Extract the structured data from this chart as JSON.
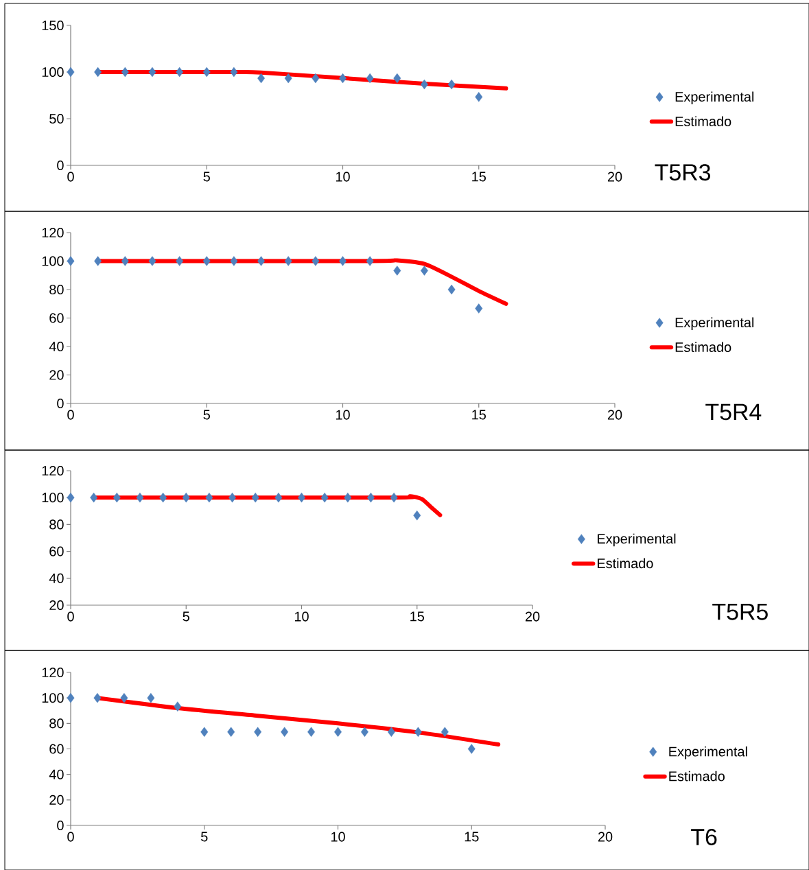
{
  "chart_data": [
    {
      "type": "scatter",
      "annotations": [
        "T5R3"
      ],
      "xlim": [
        0,
        20
      ],
      "xticks": [
        0,
        5,
        10,
        15,
        20
      ],
      "ylim": [
        0,
        150
      ],
      "yticks": [
        0,
        50,
        100,
        150
      ],
      "legend": "right",
      "series": [
        {
          "name": "Experimental",
          "type": "scatter",
          "marker": "diamond",
          "color": "#4f81bd",
          "x": [
            0,
            1,
            2,
            3,
            4,
            5,
            6,
            7,
            8,
            9,
            10,
            11,
            12,
            13,
            14,
            15
          ],
          "values": [
            100,
            100,
            100,
            100,
            100,
            100,
            100,
            93.3,
            93.3,
            93.3,
            93.3,
            93.3,
            93.3,
            86.7,
            86.7,
            73.3
          ]
        },
        {
          "name": "Estimado",
          "type": "line",
          "color": "#ff0000",
          "x": [
            1,
            6,
            7,
            10,
            13,
            16
          ],
          "values": [
            100,
            100,
            99.5,
            93.5,
            87.5,
            82.5
          ]
        }
      ]
    },
    {
      "type": "scatter",
      "annotations": [
        "T5R4"
      ],
      "xlim": [
        0,
        20
      ],
      "xticks": [
        0,
        5,
        10,
        15,
        20
      ],
      "ylim": [
        0,
        120
      ],
      "yticks": [
        0,
        20,
        40,
        60,
        80,
        100,
        120
      ],
      "legend": "right",
      "series": [
        {
          "name": "Experimental",
          "type": "scatter",
          "marker": "diamond",
          "color": "#4f81bd",
          "x": [
            0,
            1,
            2,
            3,
            4,
            5,
            6,
            7,
            8,
            9,
            10,
            11,
            12,
            13,
            14,
            15
          ],
          "values": [
            100,
            100,
            100,
            100,
            100,
            100,
            100,
            100,
            100,
            100,
            100,
            100,
            93.3,
            93.3,
            80,
            66.7
          ]
        },
        {
          "name": "Estimado",
          "type": "line",
          "color": "#ff0000",
          "x": [
            1,
            11,
            12,
            13,
            14,
            15,
            16
          ],
          "values": [
            100,
            100,
            100.5,
            98,
            89,
            79,
            70
          ]
        }
      ]
    },
    {
      "type": "scatter",
      "annotations": [
        "T5R5"
      ],
      "xlim": [
        0,
        20
      ],
      "xticks": [
        0,
        5,
        10,
        15,
        20
      ],
      "ylim": [
        20,
        120
      ],
      "yticks": [
        20,
        40,
        60,
        80,
        100,
        120
      ],
      "legend": "right",
      "series": [
        {
          "name": "Experimental",
          "type": "scatter",
          "marker": "diamond",
          "color": "#4f81bd",
          "x": [
            0,
            1,
            2,
            3,
            4,
            5,
            6,
            7,
            8,
            9,
            10,
            11,
            12,
            13,
            14,
            15
          ],
          "values": [
            100,
            100,
            100,
            100,
            100,
            100,
            100,
            100,
            100,
            100,
            100,
            100,
            100,
            100,
            100,
            86.7
          ]
        },
        {
          "name": "Estimado",
          "type": "line",
          "color": "#ff0000",
          "x": [
            1,
            14,
            14.7,
            15.2,
            15.6,
            16
          ],
          "values": [
            100,
            100,
            101,
            99,
            93,
            87
          ]
        }
      ]
    },
    {
      "type": "scatter",
      "annotations": [
        "T6"
      ],
      "xlim": [
        0,
        20
      ],
      "xticks": [
        0,
        5,
        10,
        15,
        20
      ],
      "ylim": [
        0,
        120
      ],
      "yticks": [
        0,
        20,
        40,
        60,
        80,
        100,
        120
      ],
      "legend": "right",
      "series": [
        {
          "name": "Experimental",
          "type": "scatter",
          "marker": "diamond",
          "color": "#4f81bd",
          "x": [
            0,
            1,
            2,
            3,
            4,
            5,
            6,
            7,
            8,
            9,
            10,
            11,
            12,
            13,
            14,
            15
          ],
          "values": [
            100,
            100,
            100,
            100,
            93.3,
            73.3,
            73.3,
            73.3,
            73.3,
            73.3,
            73.3,
            73.3,
            73.3,
            73.3,
            73.3,
            60
          ]
        },
        {
          "name": "Estimado",
          "type": "line",
          "color": "#ff0000",
          "x": [
            1,
            4,
            7,
            10,
            13,
            16
          ],
          "values": [
            100,
            92,
            86,
            80,
            73,
            63.5
          ]
        }
      ]
    }
  ]
}
